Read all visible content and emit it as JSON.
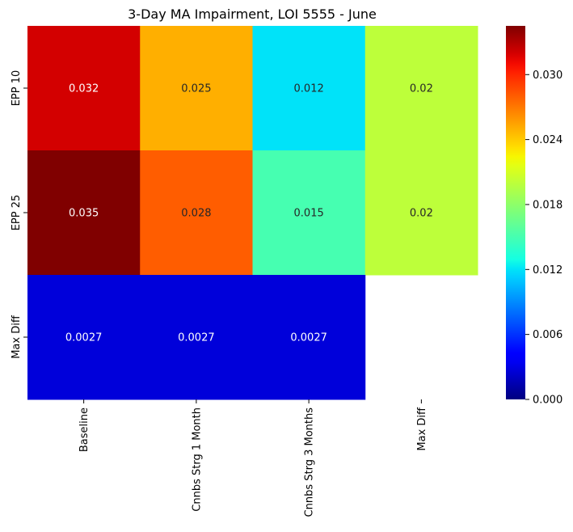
{
  "chart_data": {
    "type": "heatmap",
    "title": "3-Day MA Impairment, LOI 5555 - June",
    "x_categories": [
      "Baseline",
      "Cnnbs Strg 1 Month",
      "Cnnbs Strg 3 Months",
      "Max Diff"
    ],
    "y_categories": [
      "EPP 10",
      "EPP 25",
      "Max Diff"
    ],
    "values": [
      [
        0.032,
        0.025,
        0.012,
        0.02
      ],
      [
        0.035,
        0.028,
        0.015,
        0.02
      ],
      [
        0.0027,
        0.0027,
        0.0027,
        null
      ]
    ],
    "value_labels": [
      [
        "0.032",
        "0.025",
        "0.012",
        "0.02"
      ],
      [
        "0.035",
        "0.028",
        "0.015",
        "0.02"
      ],
      [
        "0.0027",
        "0.0027",
        "0.0027",
        ""
      ]
    ],
    "colormap": "jet",
    "vmin": 0.0,
    "vmax": 0.0345,
    "colorbar": {
      "ticks": [
        0.0,
        0.006,
        0.012,
        0.018,
        0.024,
        0.03
      ],
      "tick_labels": [
        "0.000",
        "0.006",
        "0.012",
        "0.018",
        "0.024",
        "0.030"
      ]
    },
    "xlabel": "",
    "ylabel": ""
  },
  "colors": {
    "background": "#ffffff",
    "text": "#000000",
    "cell_text_dark_bg": "#ffffff",
    "cell_text_light_bg": "#262626"
  }
}
